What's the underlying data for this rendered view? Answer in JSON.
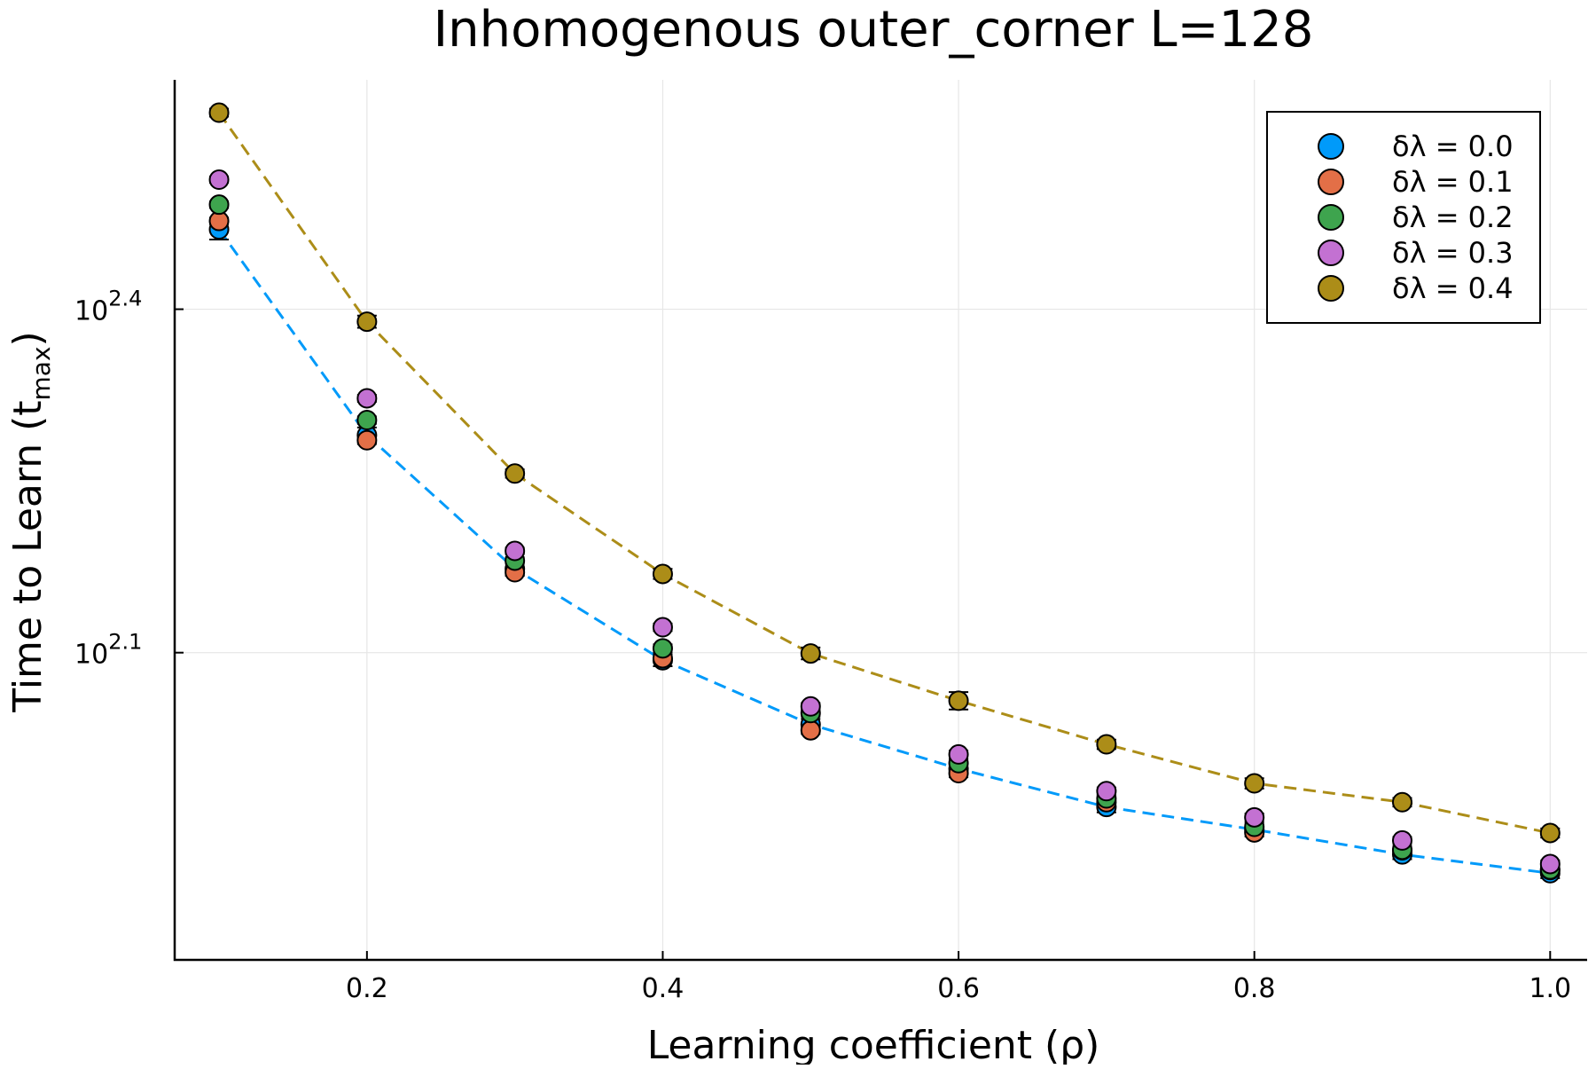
{
  "chart_data": {
    "type": "scatter",
    "title": "Inhomogenous outer_corner L=128",
    "xlabel": "Learning coefficient (ρ)",
    "ylabel": {
      "main": "Time to Learn (t",
      "sub": "max",
      "close": ")"
    },
    "x_scale": "linear",
    "y_scale": "log10",
    "xlim": [
      0.07,
      1.025
    ],
    "ylim": [
      71.6,
      373
    ],
    "x_ticks": [
      0.2,
      0.4,
      0.6,
      0.8,
      1.0
    ],
    "x_tick_labels": [
      "0.2",
      "0.4",
      "0.6",
      "0.8",
      "1.0"
    ],
    "y_ticks": [
      125.9,
      251.2
    ],
    "y_tick_labels": [
      {
        "base": "10",
        "exp": "2.1"
      },
      {
        "base": "10",
        "exp": "2.4"
      }
    ],
    "grid": true,
    "legend_position": "top-right",
    "x": [
      0.1,
      0.2,
      0.3,
      0.4,
      0.5,
      0.6,
      0.7,
      0.8,
      0.9,
      1.0
    ],
    "series": [
      {
        "name": "δλ = 0.0",
        "color": "#009AFA",
        "dashed_fit": true,
        "values": [
          295,
          195,
          149,
          124,
          109,
          99.7,
          92.3,
          88.2,
          83.9,
          80.8
        ],
        "errors": [
          6,
          3,
          2,
          1.5,
          1.2,
          1,
          1,
          0.8,
          0.8,
          0.8
        ]
      },
      {
        "name": "δλ = 0.1",
        "color": "#E36F47",
        "dashed_fit": false,
        "values": [
          300,
          193,
          148,
          124.5,
          107.7,
          98.8,
          93.2,
          87.7,
          84.6,
          81.3
        ],
        "errors": [
          2,
          1.5,
          1,
          1,
          0.8,
          0.8,
          0.7,
          0.7,
          0.6,
          0.6
        ]
      },
      {
        "name": "δλ = 0.2",
        "color": "#3EA44E",
        "dashed_fit": false,
        "values": [
          310,
          201,
          151.5,
          127,
          111.5,
          100.8,
          93.9,
          88.7,
          84.7,
          81.4
        ],
        "errors": [
          2,
          1.5,
          1,
          1,
          0.8,
          0.8,
          0.7,
          0.7,
          0.6,
          0.6
        ]
      },
      {
        "name": "δλ = 0.3",
        "color": "#C371D2",
        "dashed_fit": false,
        "values": [
          326,
          210,
          154.5,
          132.5,
          113,
          102.6,
          95.3,
          90.4,
          86.3,
          82.3
        ],
        "errors": [
          2,
          1.5,
          1,
          1,
          0.8,
          0.8,
          0.7,
          0.7,
          0.6,
          0.6
        ]
      },
      {
        "name": "δλ = 0.4",
        "color": "#AC8D18",
        "dashed_fit": true,
        "values": [
          373,
          245,
          180.5,
          147.5,
          125.7,
          114.3,
          104.7,
          96.8,
          93.2,
          87.6
        ],
        "errors": [
          3,
          3,
          1.5,
          1.5,
          1.5,
          2,
          1,
          1,
          0.8,
          0.8
        ]
      }
    ]
  }
}
